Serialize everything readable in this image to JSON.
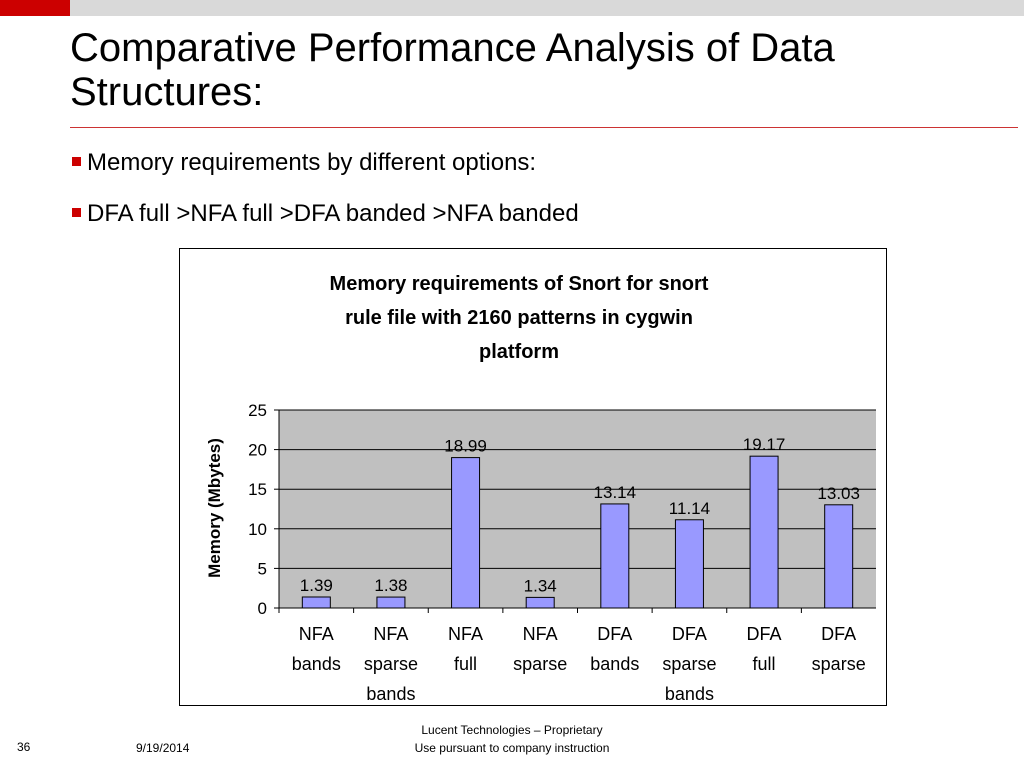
{
  "slide": {
    "title": "Comparative Performance Analysis of Data Structures:",
    "bullets": [
      "Memory requirements by different options:",
      "DFA full >NFA full >DFA banded >NFA banded"
    ],
    "footer": {
      "page_number": "36",
      "date": "9/19/2014",
      "line1": "Lucent Technologies – Proprietary",
      "line2": "Use pursuant to company instruction"
    },
    "colors": {
      "accent": "#cc0000",
      "bar": "#9999ff",
      "plot_bg": "#c0c0c0"
    }
  },
  "chart_data": {
    "type": "bar",
    "title_lines": [
      "Memory requirements of Snort for snort",
      "rule file with 2160 patterns in cygwin",
      "platform"
    ],
    "ylabel": "Memory (Mbytes)",
    "xlabel": "",
    "ylim": [
      0,
      25
    ],
    "yticks": [
      0,
      5,
      10,
      15,
      20,
      25
    ],
    "grid": true,
    "legend": "none",
    "categories": [
      [
        "NFA",
        "bands"
      ],
      [
        "NFA",
        "sparse",
        "bands"
      ],
      [
        "NFA",
        "full"
      ],
      [
        "NFA",
        "sparse"
      ],
      [
        "DFA",
        "bands"
      ],
      [
        "DFA",
        "sparse",
        "bands"
      ],
      [
        "DFA",
        "full"
      ],
      [
        "DFA",
        "sparse"
      ]
    ],
    "values": [
      1.39,
      1.38,
      18.99,
      1.34,
      13.14,
      11.14,
      19.17,
      13.03
    ]
  }
}
